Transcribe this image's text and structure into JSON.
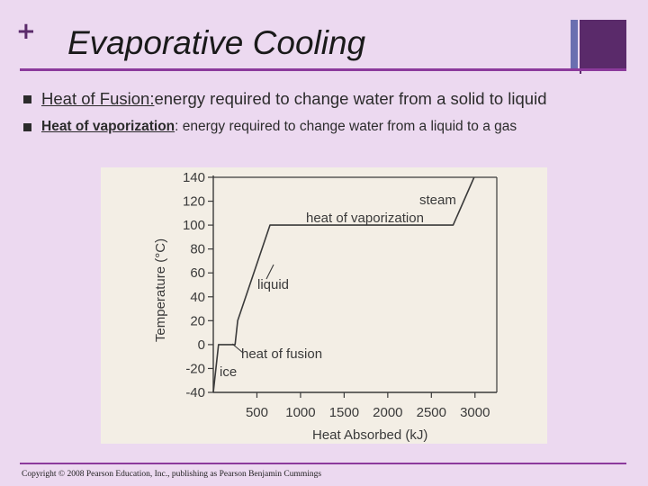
{
  "slide": {
    "plus_glyph": "+",
    "title": "Evaporative Cooling",
    "colors": {
      "background": "#ecd9f0",
      "accent": "#8c3a9c",
      "dark_purple": "#5a2a6a",
      "blue_bar": "#6a6fb0"
    }
  },
  "bullets": [
    {
      "term": "Heat of Fusion:",
      "text": " energy required to change water from a solid to liquid"
    },
    {
      "term": "Heat of vaporization",
      "text": ": energy required to change water from a liquid to a gas"
    }
  ],
  "chart_data": {
    "type": "line",
    "xlabel": "Heat Absorbed (kJ)",
    "ylabel": "Temperature (°C)",
    "x_ticks": [
      500,
      1000,
      1500,
      2000,
      2500,
      3000
    ],
    "y_ticks": [
      140,
      120,
      100,
      80,
      60,
      40,
      20,
      0,
      -20,
      -40
    ],
    "xlim": [
      0,
      3250
    ],
    "ylim": [
      -40,
      140
    ],
    "series": [
      {
        "x": [
          0,
          60,
          250,
          280,
          650,
          2750,
          2990
        ],
        "y": [
          -40,
          0,
          0,
          20,
          100,
          100,
          140
        ]
      }
    ],
    "annotations": [
      {
        "text": "steam"
      },
      {
        "text": "heat of vaporization"
      },
      {
        "text": "liquid"
      },
      {
        "text": "heat of fusion"
      },
      {
        "text": "ice"
      }
    ],
    "grid": false
  },
  "footer": {
    "copyright": "Copyright © 2008 Pearson Education, Inc., publishing as Pearson Benjamin Cummings"
  }
}
